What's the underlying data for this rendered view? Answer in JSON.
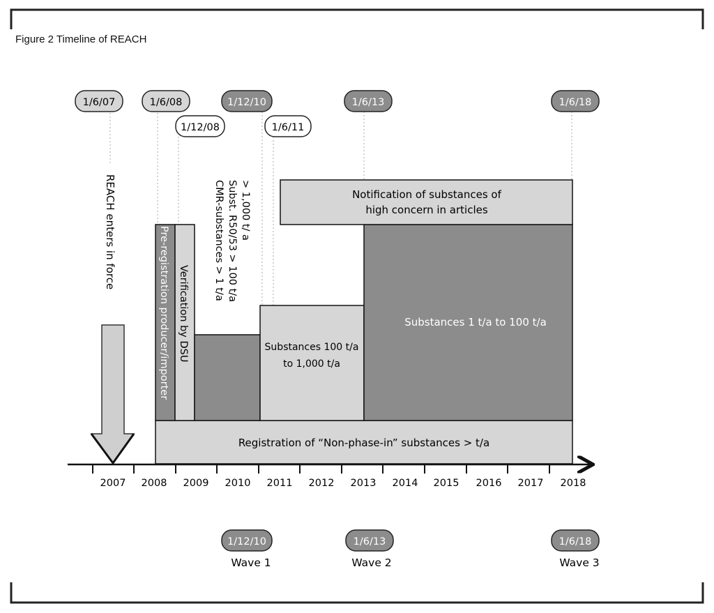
{
  "caption": "Figure 2 Timeline of REACH",
  "years": [
    "2007",
    "2008",
    "2009",
    "2010",
    "2011",
    "2012",
    "2013",
    "2014",
    "2015",
    "2016",
    "2017",
    "2018"
  ],
  "top_dates": [
    "1/6/07",
    "1/6/08",
    "1/12/08",
    "1/12/10",
    "1/6/11",
    "1/6/13",
    "1/6/18"
  ],
  "reach_label": "REACH enters in force",
  "preregistration_label": "Pre-registration producer/importer",
  "verification_label": "Verification by DSU",
  "wave1_criteria": [
    "> 1,000 t/ a",
    "Subst. R50/53 > 100 t/a",
    "CMR-substances > 1 t/a"
  ],
  "notification_lines": [
    "Notification of substances of",
    "high concern in articles"
  ],
  "substances_100_lines": [
    "Substances 100 t/a",
    "to 1,000 t/a"
  ],
  "substances_1_label": "Substances 1 t/a to 100 t/a",
  "registration_label": "Registration of “Non-phase-in” substances > t/a",
  "waves": [
    {
      "date": "1/12/10",
      "label": "Wave 1"
    },
    {
      "date": "1/6/13",
      "label": "Wave 2"
    },
    {
      "date": "1/6/18",
      "label": "Wave 3"
    }
  ],
  "colors": {
    "light": "#d6d6d6",
    "dark": "#8c8c8c",
    "reach_fill": "#cfcfcf"
  }
}
